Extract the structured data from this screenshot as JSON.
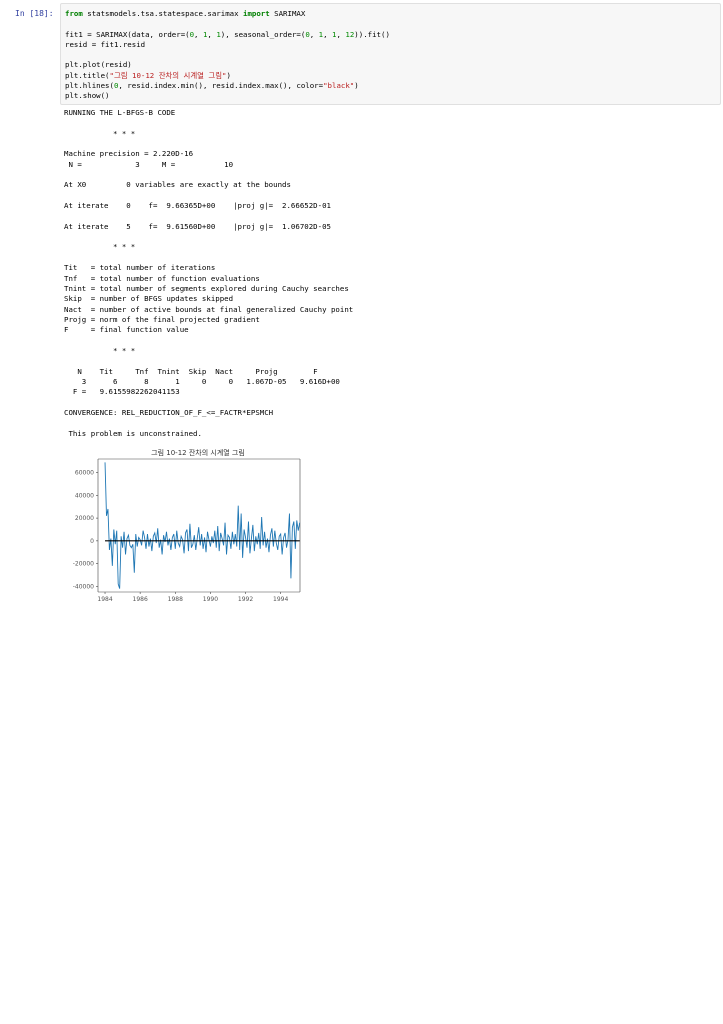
{
  "cell": {
    "prompt": "In [18]:",
    "code_lines": [
      [
        {
          "t": "from",
          "c": "kw"
        },
        {
          "t": " statsmodels.tsa.statespace.sarimax ",
          "c": ""
        },
        {
          "t": "import",
          "c": "kw"
        },
        {
          "t": " SARIMAX",
          "c": ""
        }
      ],
      [],
      [
        {
          "t": "fit1 = SARIMAX(data, order=(",
          "c": ""
        },
        {
          "t": "0",
          "c": "num"
        },
        {
          "t": ", ",
          "c": ""
        },
        {
          "t": "1",
          "c": "num"
        },
        {
          "t": ", ",
          "c": ""
        },
        {
          "t": "1",
          "c": "num"
        },
        {
          "t": "), seasonal_order=(",
          "c": ""
        },
        {
          "t": "0",
          "c": "num"
        },
        {
          "t": ", ",
          "c": ""
        },
        {
          "t": "1",
          "c": "num"
        },
        {
          "t": ", ",
          "c": ""
        },
        {
          "t": "1",
          "c": "num"
        },
        {
          "t": ", ",
          "c": ""
        },
        {
          "t": "12",
          "c": "num"
        },
        {
          "t": ")).fit()",
          "c": ""
        }
      ],
      [
        {
          "t": "resid = fit1.resid",
          "c": ""
        }
      ],
      [],
      [
        {
          "t": "plt.plot(resid)",
          "c": ""
        }
      ],
      [
        {
          "t": "plt.title(",
          "c": ""
        },
        {
          "t": "\"그림 10-12 잔차의 시계열 그림\"",
          "c": "str"
        },
        {
          "t": ")",
          "c": ""
        }
      ],
      [
        {
          "t": "plt.hlines(",
          "c": ""
        },
        {
          "t": "0",
          "c": "num"
        },
        {
          "t": ", resid.index.min(), resid.index.max(), color=",
          "c": ""
        },
        {
          "t": "\"black\"",
          "c": "str"
        },
        {
          "t": ")",
          "c": ""
        }
      ],
      [
        {
          "t": "plt.show()",
          "c": ""
        }
      ]
    ]
  },
  "output_lines": [
    "RUNNING THE L-BFGS-B CODE",
    "",
    "           * * *",
    "",
    "Machine precision = 2.220D-16",
    " N =            3     M =           10",
    "",
    "At X0         0 variables are exactly at the bounds",
    "",
    "At iterate    0    f=  9.66365D+00    |proj g|=  2.66652D-01",
    "",
    "At iterate    5    f=  9.61560D+00    |proj g|=  1.06702D-05",
    "",
    "           * * *",
    "",
    "Tit   = total number of iterations",
    "Tnf   = total number of function evaluations",
    "Tnint = total number of segments explored during Cauchy searches",
    "Skip  = number of BFGS updates skipped",
    "Nact  = number of active bounds at final generalized Cauchy point",
    "Projg = norm of the final projected gradient",
    "F     = final function value",
    "",
    "           * * *",
    "",
    "   N    Tit     Tnf  Tnint  Skip  Nact     Projg        F",
    "    3      6      8      1     0     0   1.067D-05   9.616D+00",
    "  F =   9.6155982262041153",
    "",
    "CONVERGENCE: REL_REDUCTION_OF_F_<=_FACTR*EPSMCH",
    "",
    " This problem is unconstrained."
  ],
  "chart_data": {
    "type": "line",
    "title": "그림 10-12 잔차의 시계열 그림",
    "xlabel": "",
    "ylabel": "",
    "xlim": [
      1983.6,
      1995.1
    ],
    "ylim": [
      -45000,
      72000
    ],
    "x_ticks": [
      "1984",
      "1986",
      "1988",
      "1990",
      "1992",
      "1994"
    ],
    "x_tick_values": [
      1984,
      1986,
      1988,
      1990,
      1992,
      1994
    ],
    "y_ticks": [
      "60000",
      "40000",
      "20000",
      "0",
      "-20000",
      "-40000"
    ],
    "y_tick_values": [
      60000,
      40000,
      20000,
      0,
      -20000,
      -40000
    ],
    "grid": false,
    "series": [
      {
        "color": "#1f77b4",
        "x_start": 1984.0,
        "x_step": 0.0833333,
        "values": [
          69000,
          22000,
          28000,
          -8000,
          2000,
          -22000,
          10000,
          -3000,
          9000,
          -38000,
          -42000,
          4000,
          -6000,
          8000,
          -12000,
          2000,
          5000,
          -4000,
          -6000,
          -3000,
          -28000,
          6000,
          -5000,
          3000,
          1000,
          -4000,
          9000,
          3000,
          -7000,
          6000,
          -5000,
          2000,
          -9000,
          4000,
          7000,
          -2000,
          11000,
          -6000,
          1000,
          -12000,
          5000,
          -1000,
          8000,
          -4000,
          2000,
          -8000,
          3000,
          6000,
          -7000,
          9000,
          -2000,
          -5000,
          4000,
          1000,
          -11000,
          7000,
          10000,
          -9000,
          15000,
          -6000,
          -3000,
          5000,
          -8000,
          2000,
          12000,
          -4000,
          6000,
          -7000,
          3000,
          -10000,
          8000,
          1000,
          -5000,
          4000,
          -2000,
          9000,
          -6000,
          13000,
          -9000,
          7000,
          2000,
          -4000,
          16000,
          -12000,
          5000,
          3000,
          -7000,
          8000,
          -3000,
          6000,
          -5000,
          31000,
          -8000,
          24000,
          -15000,
          10000,
          3000,
          -6000,
          17000,
          -11000,
          2000,
          14000,
          -9000,
          4000,
          -3000,
          7000,
          -7000,
          21000,
          -4000,
          8000,
          -6000,
          2000,
          -10000,
          5000,
          11000,
          -5000,
          9000,
          -2000,
          -8000,
          4000,
          6000,
          -12000,
          3000,
          7000,
          -6000,
          1000,
          24000,
          -33000,
          12000,
          17000,
          -7000,
          18000,
          9000,
          16000
        ]
      }
    ],
    "hline": {
      "y": 0,
      "color": "#000000"
    }
  }
}
